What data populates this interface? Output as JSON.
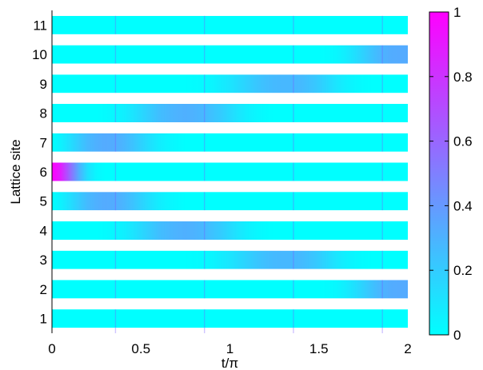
{
  "chart_data": {
    "type": "heatmap",
    "xlabel": "t/π",
    "ylabel": "Lattice site",
    "xlim": [
      0,
      2
    ],
    "ylim": [
      0.5,
      11.5
    ],
    "x_ticks": [
      "0",
      "0.5",
      "1",
      "1.5",
      "2"
    ],
    "y_ticks": [
      "1",
      "2",
      "3",
      "4",
      "5",
      "6",
      "7",
      "8",
      "9",
      "10",
      "11"
    ],
    "rows": [
      1,
      2,
      3,
      4,
      5,
      6,
      7,
      8,
      9,
      10,
      11
    ],
    "colorbar": {
      "min": 0,
      "max": 1,
      "ticks": [
        "0",
        "0.2",
        "0.4",
        "0.6",
        "0.8",
        "1"
      ],
      "colormap": "cool",
      "low_color": "#00ffff",
      "high_color": "#ff00ff"
    },
    "time_samples": [
      0,
      0.05,
      0.1,
      0.15,
      0.2,
      0.25,
      0.3,
      0.35,
      0.4,
      0.45,
      0.5,
      0.55,
      0.6,
      0.65,
      0.7,
      0.75,
      0.8,
      0.85,
      0.9,
      0.95,
      1.0,
      1.05,
      1.1,
      1.15,
      1.2,
      1.25,
      1.3,
      1.35,
      1.4,
      1.45,
      1.5,
      1.55,
      1.6,
      1.65,
      1.7,
      1.75,
      1.8,
      1.85,
      1.9,
      1.95,
      2.0
    ],
    "intensity": {
      "1": [
        0,
        0,
        0,
        0,
        0,
        0,
        0,
        0,
        0,
        0,
        0,
        0,
        0,
        0,
        0,
        0,
        0,
        0,
        0,
        0,
        0,
        0,
        0,
        0,
        0,
        0,
        0,
        0,
        0,
        0,
        0,
        0,
        0,
        0,
        0,
        0,
        0,
        0,
        0,
        0,
        0
      ],
      "2": [
        0,
        0,
        0,
        0,
        0,
        0,
        0,
        0,
        0,
        0,
        0,
        0,
        0,
        0,
        0,
        0,
        0,
        0,
        0,
        0,
        0,
        0,
        0,
        0,
        0,
        0,
        0,
        0,
        0,
        0,
        0,
        0.01,
        0.03,
        0.07,
        0.12,
        0.18,
        0.24,
        0.29,
        0.32,
        0.33,
        0.33
      ],
      "3": [
        0,
        0,
        0,
        0,
        0,
        0,
        0,
        0,
        0,
        0,
        0,
        0,
        0,
        0,
        0,
        0,
        0.01,
        0.02,
        0.04,
        0.07,
        0.1,
        0.14,
        0.18,
        0.22,
        0.25,
        0.27,
        0.28,
        0.28,
        0.27,
        0.24,
        0.2,
        0.15,
        0.1,
        0.06,
        0.03,
        0.01,
        0,
        0,
        0,
        0,
        0
      ],
      "4": [
        0,
        0,
        0,
        0,
        0,
        0,
        0.01,
        0.03,
        0.06,
        0.1,
        0.15,
        0.2,
        0.25,
        0.28,
        0.3,
        0.31,
        0.3,
        0.28,
        0.24,
        0.2,
        0.15,
        0.1,
        0.06,
        0.03,
        0.01,
        0,
        0,
        0,
        0,
        0,
        0,
        0,
        0,
        0,
        0,
        0,
        0,
        0,
        0,
        0,
        0
      ],
      "5": [
        0,
        0.05,
        0.12,
        0.2,
        0.27,
        0.31,
        0.33,
        0.32,
        0.29,
        0.24,
        0.18,
        0.12,
        0.07,
        0.04,
        0.02,
        0,
        0,
        0,
        0,
        0,
        0,
        0,
        0,
        0,
        0,
        0,
        0,
        0,
        0,
        0,
        0,
        0,
        0,
        0,
        0,
        0,
        0,
        0,
        0,
        0,
        0
      ],
      "6": [
        1,
        0.88,
        0.6,
        0.32,
        0.12,
        0.03,
        0,
        0,
        0,
        0,
        0,
        0,
        0,
        0,
        0,
        0,
        0,
        0,
        0,
        0,
        0,
        0,
        0,
        0,
        0,
        0,
        0,
        0,
        0,
        0,
        0,
        0,
        0,
        0,
        0,
        0,
        0,
        0,
        0,
        0,
        0
      ],
      "7": [
        0,
        0.05,
        0.12,
        0.2,
        0.27,
        0.31,
        0.33,
        0.32,
        0.29,
        0.24,
        0.18,
        0.12,
        0.07,
        0.04,
        0.02,
        0,
        0,
        0,
        0,
        0,
        0,
        0,
        0,
        0,
        0,
        0,
        0,
        0,
        0,
        0,
        0,
        0,
        0,
        0,
        0,
        0,
        0,
        0,
        0,
        0,
        0
      ],
      "8": [
        0,
        0,
        0,
        0,
        0,
        0,
        0.01,
        0.03,
        0.06,
        0.1,
        0.15,
        0.2,
        0.25,
        0.28,
        0.3,
        0.31,
        0.3,
        0.28,
        0.24,
        0.2,
        0.15,
        0.1,
        0.06,
        0.03,
        0.01,
        0,
        0,
        0,
        0,
        0,
        0,
        0,
        0,
        0,
        0,
        0,
        0,
        0,
        0,
        0,
        0
      ],
      "9": [
        0,
        0,
        0,
        0,
        0,
        0,
        0,
        0,
        0,
        0,
        0,
        0,
        0,
        0,
        0,
        0,
        0.01,
        0.02,
        0.04,
        0.07,
        0.1,
        0.14,
        0.18,
        0.22,
        0.25,
        0.27,
        0.28,
        0.28,
        0.27,
        0.24,
        0.2,
        0.15,
        0.1,
        0.06,
        0.03,
        0.01,
        0,
        0,
        0,
        0,
        0
      ],
      "10": [
        0,
        0,
        0,
        0,
        0,
        0,
        0,
        0,
        0,
        0,
        0,
        0,
        0,
        0,
        0,
        0,
        0,
        0,
        0,
        0,
        0,
        0,
        0,
        0,
        0,
        0,
        0,
        0,
        0,
        0,
        0,
        0.01,
        0.03,
        0.07,
        0.12,
        0.18,
        0.24,
        0.29,
        0.32,
        0.33,
        0.33
      ],
      "11": [
        0,
        0,
        0,
        0,
        0,
        0,
        0,
        0,
        0,
        0,
        0,
        0,
        0,
        0,
        0,
        0,
        0,
        0,
        0,
        0,
        0,
        0,
        0,
        0,
        0,
        0,
        0,
        0,
        0,
        0,
        0,
        0,
        0,
        0,
        0,
        0,
        0,
        0,
        0,
        0,
        0
      ]
    }
  }
}
